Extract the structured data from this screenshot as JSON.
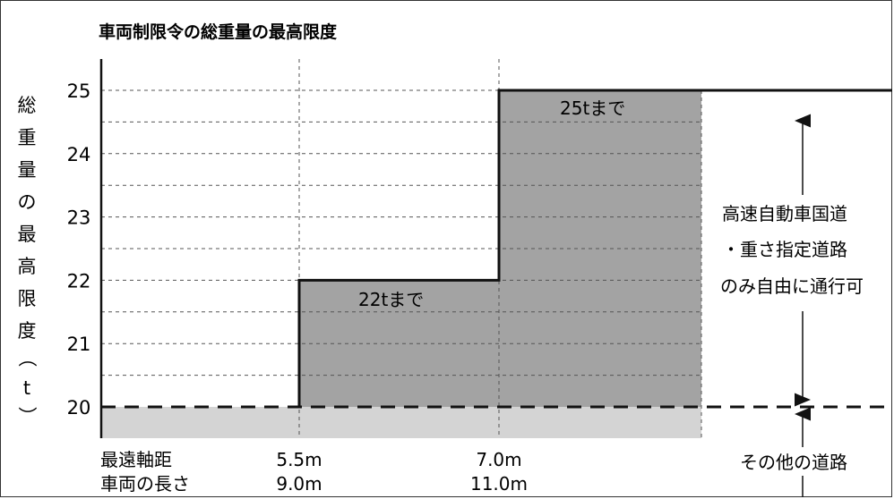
{
  "chart_data": {
    "type": "step",
    "title": "車両制限令の総重量の最高限度",
    "ylabel": "総重量の最高限度（t）",
    "ylabel_chars": [
      "総",
      "重",
      "量",
      "の",
      "最",
      "高",
      "限",
      "度",
      "（",
      "t",
      "）"
    ],
    "yticks": [
      20,
      21,
      22,
      23,
      24,
      25
    ],
    "ylim": [
      19.6,
      25.5
    ],
    "grid": "dashed, every 0.5 t",
    "x_rows": [
      {
        "label": "最遠軸距",
        "values": [
          "5.5m",
          "7.0m"
        ]
      },
      {
        "label": "車両の長さ",
        "values": [
          "9.0m",
          "11.0m"
        ]
      }
    ],
    "steps": [
      {
        "range": "0 – 5.5m",
        "max_t": 20
      },
      {
        "range": "5.5m – 7.0m",
        "max_t": 22,
        "label": "22tまで"
      },
      {
        "range": "7.0m –",
        "max_t": 25,
        "label": "25tまで"
      }
    ],
    "base_level_t": 20,
    "annotations": {
      "upper_lines": [
        "高速自動車国道",
        "・重さ指定道路",
        "のみ自由に通行可"
      ],
      "lower": "その他の道路"
    },
    "colors": {
      "light_region": "#d4d4d4",
      "dark_region": "#a3a3a3",
      "line": "#111111"
    }
  }
}
